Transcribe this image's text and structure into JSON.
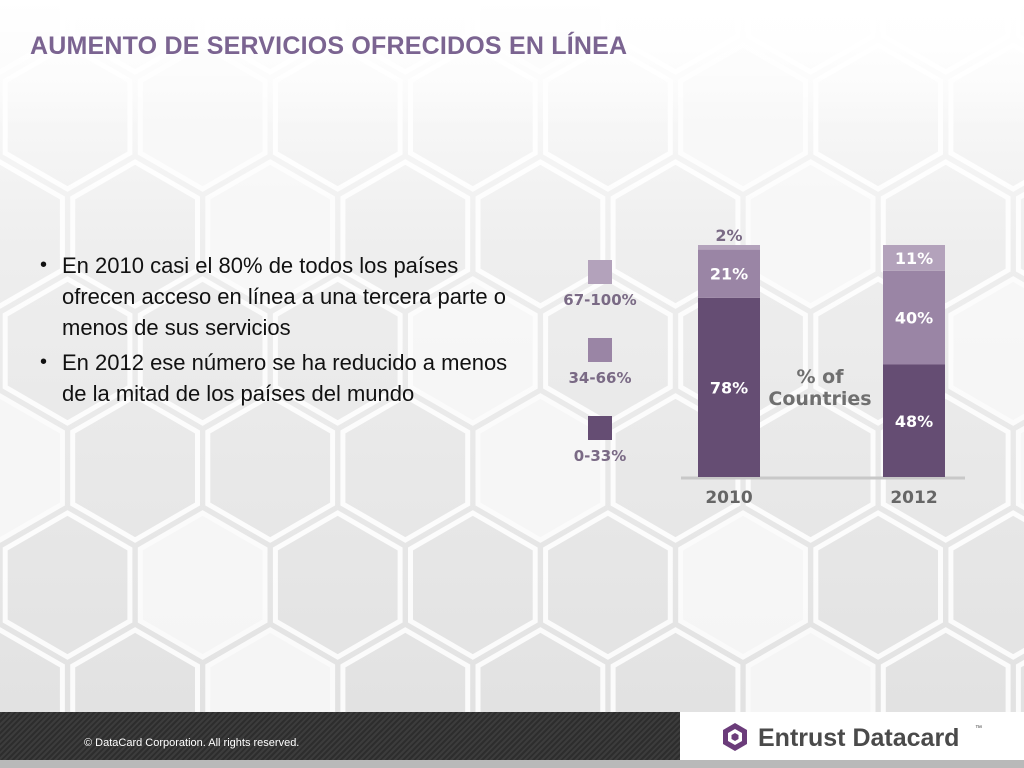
{
  "slide": {
    "title": "AUMENTO DE SERVICIOS OFRECIDOS EN LÍNEA",
    "bullets": [
      "En 2010 casi el 80% de todos los países ofrecen acceso en línea a una tercera parte o menos de sus servicios",
      "En 2012 ese número se ha reducido a menos de la mitad de los países del mundo"
    ]
  },
  "footer": {
    "copyright": "© DataCard Corporation. All rights reserved.",
    "logo_text": "Entrust Datacard",
    "logo_tm": "™"
  },
  "colors": {
    "title": "#7b6491",
    "seg_low": "#654d73",
    "seg_mid": "#9a85a5",
    "seg_high": "#b3a2bb",
    "label_text": "#7a6a85",
    "logo_accent": "#6b3c7a"
  },
  "chart_data": {
    "type": "bar",
    "stacked": true,
    "categories": [
      "2010",
      "2012"
    ],
    "series": [
      {
        "name": "0-33%",
        "values": [
          78,
          48
        ]
      },
      {
        "name": "34-66%",
        "values": [
          21,
          40
        ]
      },
      {
        "name": "67-100%",
        "values": [
          2,
          11
        ]
      }
    ],
    "value_labels": [
      [
        "78%",
        "48%"
      ],
      [
        "21%",
        "40%"
      ],
      [
        "2%",
        "11%"
      ]
    ],
    "legend_title": "% of Countries",
    "legend_placement": "left",
    "ylim": [
      0,
      100
    ],
    "grid": false
  }
}
